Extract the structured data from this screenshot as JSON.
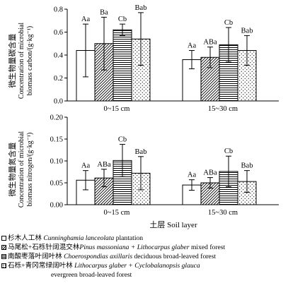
{
  "figure": {
    "x_axis_title": "土层 Soil layer",
    "categories": [
      "0~15 cm",
      "15~30 cm"
    ]
  },
  "series": [
    {
      "key": "a",
      "zh": "杉木人工林",
      "latin": "Cunninghamia lanceolata",
      "suffix": " plantation",
      "fill": "blank"
    },
    {
      "key": "b",
      "zh": "马尾松+石栎针阔混交林",
      "latin": "Pinus massoniana + Lithocarpus glaber",
      "suffix": " mixed forest",
      "fill": "diagonal"
    },
    {
      "key": "c",
      "zh": "南酸枣落叶阔叶林",
      "latin": "Choerospondias axillaris",
      "suffix": " deciduous broad-leaved forest",
      "fill": "horizontal"
    },
    {
      "key": "d",
      "zh": "石栎+青冈常绿阔叶林",
      "latin": "Lithocarpus glaber + Cyclobalanopsis glauca",
      "suffix": "",
      "line2": "evergreen broad-leaved forest",
      "fill": "dots"
    }
  ],
  "chart_data": [
    {
      "type": "bar",
      "ylabel_zh": "微生物量碳含量",
      "ylabel_en1": "Concentration of microbial",
      "ylabel_en2": "biomass carbon/(g·kg⁻¹)",
      "ylim": [
        0,
        0.8
      ],
      "yticks": [
        "0.0",
        "0.2",
        "0.4",
        "0.6",
        "0.8"
      ],
      "categories": [
        "0~15 cm",
        "15~30 cm"
      ],
      "series": [
        {
          "values": [
            0.44,
            0.36
          ],
          "errors": [
            0.23,
            0.08
          ],
          "labels": [
            "Aa",
            "Aa"
          ]
        },
        {
          "values": [
            0.5,
            0.38
          ],
          "errors": [
            0.23,
            0.09
          ],
          "labels": [
            "Ba",
            "ABa"
          ]
        },
        {
          "values": [
            0.62,
            0.49
          ],
          "errors": [
            0.05,
            0.15
          ],
          "labels": [
            "Cb",
            "Cb"
          ]
        },
        {
          "values": [
            0.54,
            0.44
          ],
          "errors": [
            0.23,
            0.13
          ],
          "labels": [
            "Bab",
            "Bab"
          ]
        }
      ]
    },
    {
      "type": "bar",
      "ylabel_zh": "微生物量氮含量",
      "ylabel_en1": "Concentration of microbial",
      "ylabel_en2": "biomass nitrogen/(g·kg⁻¹)",
      "ylim": [
        0,
        0.2
      ],
      "yticks": [
        "0.00",
        "0.05",
        "0.10",
        "0.15",
        "0.20"
      ],
      "categories": [
        "0~15 cm",
        "15~30 cm"
      ],
      "series": [
        {
          "values": [
            0.056,
            0.045
          ],
          "errors": [
            0.022,
            0.012
          ],
          "labels": [
            "Aa",
            "Aa"
          ]
        },
        {
          "values": [
            0.061,
            0.05
          ],
          "errors": [
            0.02,
            0.012
          ],
          "labels": [
            "ABa",
            "ABa"
          ]
        },
        {
          "values": [
            0.101,
            0.076
          ],
          "errors": [
            0.037,
            0.035
          ],
          "labels": [
            "Cb",
            "Cb"
          ]
        },
        {
          "values": [
            0.072,
            0.053
          ],
          "errors": [
            0.038,
            0.025
          ],
          "labels": [
            "Bab",
            "Bab"
          ]
        }
      ]
    }
  ]
}
